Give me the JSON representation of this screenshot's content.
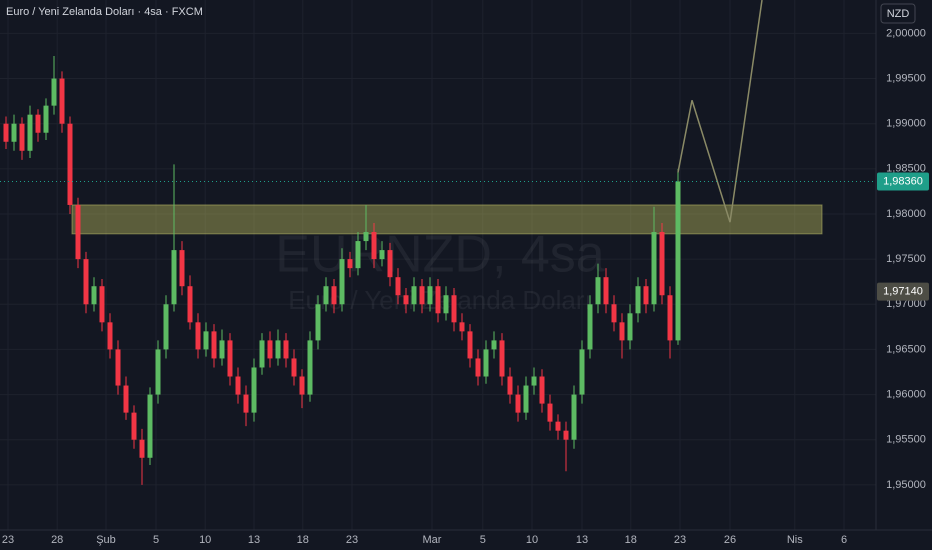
{
  "header": {
    "title": "Euro / Yeni Zelanda Doları · 4sa · FXCM",
    "currency": "NZD"
  },
  "watermark": {
    "symbol": "EURNZD, 4sa",
    "name": "Euro / Yeni Zelanda Doları"
  },
  "chart_data": {
    "type": "candlestick",
    "up_color": "#5dbb63",
    "down_color": "#f23645",
    "xlim": [
      -0.75,
      108.75
    ],
    "ylim": [
      1.945,
      2.0037
    ],
    "grid": true,
    "xticks": [
      {
        "value": 0.25,
        "label": "23"
      },
      {
        "value": 6.4,
        "label": "28"
      },
      {
        "value": 12.5,
        "label": "Şub"
      },
      {
        "value": 18.75,
        "label": "5"
      },
      {
        "value": 24.9,
        "label": "10"
      },
      {
        "value": 31,
        "label": "13"
      },
      {
        "value": 37.1,
        "label": "18"
      },
      {
        "value": 43.25,
        "label": "23"
      },
      {
        "value": 53.25,
        "label": "Mar"
      },
      {
        "value": 59.6,
        "label": "5"
      },
      {
        "value": 65.75,
        "label": "10"
      },
      {
        "value": 72,
        "label": "13"
      },
      {
        "value": 78.1,
        "label": "18"
      },
      {
        "value": 84.25,
        "label": "23"
      },
      {
        "value": 90.5,
        "label": "26"
      },
      {
        "value": 98.6,
        "label": "Nis"
      },
      {
        "value": 104.75,
        "label": "6"
      }
    ],
    "yticks": [
      {
        "value": 2.0,
        "label": "2,00000"
      },
      {
        "value": 1.995,
        "label": "1,99500"
      },
      {
        "value": 1.99,
        "label": "1,99000"
      },
      {
        "value": 1.985,
        "label": "1,98500"
      },
      {
        "value": 1.98,
        "label": "1,98000"
      },
      {
        "value": 1.975,
        "label": "1,97500"
      },
      {
        "value": 1.97,
        "label": "1,97000"
      },
      {
        "value": 1.965,
        "label": "1,96500"
      },
      {
        "value": 1.96,
        "label": "1,96000"
      },
      {
        "value": 1.955,
        "label": "1,95500"
      },
      {
        "value": 1.95,
        "label": "1,95000"
      }
    ],
    "open": [
      1.99,
      1.988,
      1.99,
      1.987,
      1.991,
      1.989,
      1.992,
      1.995,
      1.99,
      1.981,
      1.975,
      1.97,
      1.972,
      1.968,
      1.965,
      1.961,
      1.958,
      1.955,
      1.953,
      1.96,
      1.965,
      1.97,
      1.976,
      1.972,
      1.968,
      1.965,
      1.967,
      1.964,
      1.966,
      1.962,
      1.96,
      1.958,
      1.963,
      1.966,
      1.964,
      1.966,
      1.964,
      1.962,
      1.96,
      1.966,
      1.97,
      1.972,
      1.97,
      1.975,
      1.974,
      1.977,
      1.978,
      1.975,
      1.976,
      1.973,
      1.971,
      1.97,
      1.972,
      1.97,
      1.972,
      1.969,
      1.971,
      1.968,
      1.967,
      1.964,
      1.962,
      1.965,
      1.966,
      1.962,
      1.96,
      1.958,
      1.961,
      1.962,
      1.959,
      1.957,
      1.956,
      1.955,
      1.96,
      1.965,
      1.97,
      1.973,
      1.97,
      1.968,
      1.966,
      1.969,
      1.972,
      1.97,
      1.978,
      1.971,
      1.966
    ],
    "high": [
      1.9908,
      1.991,
      1.9907,
      1.992,
      1.9916,
      1.9928,
      1.9975,
      1.9958,
      1.9908,
      1.9818,
      1.9758,
      1.973,
      1.9728,
      1.969,
      1.966,
      1.962,
      1.9588,
      1.9562,
      1.9608,
      1.966,
      1.971,
      1.9855,
      1.977,
      1.9732,
      1.969,
      1.968,
      1.9678,
      1.9672,
      1.9668,
      1.963,
      1.961,
      1.964,
      1.9668,
      1.967,
      1.9672,
      1.9668,
      1.965,
      1.9628,
      1.967,
      1.971,
      1.973,
      1.9728,
      1.9762,
      1.9758,
      1.978,
      1.981,
      1.979,
      1.977,
      1.9768,
      1.974,
      1.9718,
      1.973,
      1.9728,
      1.973,
      1.9728,
      1.972,
      1.9718,
      1.969,
      1.9678,
      1.965,
      1.966,
      1.967,
      1.9668,
      1.963,
      1.961,
      1.962,
      1.963,
      1.9628,
      1.96,
      1.9578,
      1.957,
      1.961,
      1.966,
      1.971,
      1.9745,
      1.974,
      1.971,
      1.969,
      1.97,
      1.973,
      1.9728,
      1.9808,
      1.979,
      1.972,
      1.985
    ],
    "low": [
      1.9872,
      1.987,
      1.986,
      1.9862,
      1.988,
      1.9882,
      1.991,
      1.989,
      1.98,
      1.974,
      1.969,
      1.9692,
      1.967,
      1.964,
      1.96,
      1.9572,
      1.954,
      1.95,
      1.9522,
      1.959,
      1.964,
      1.9692,
      1.971,
      1.9672,
      1.964,
      1.9642,
      1.963,
      1.9632,
      1.961,
      1.959,
      1.9565,
      1.957,
      1.9622,
      1.963,
      1.9632,
      1.963,
      1.961,
      1.9585,
      1.9592,
      1.965,
      1.9692,
      1.969,
      1.9692,
      1.973,
      1.9732,
      1.976,
      1.974,
      1.9742,
      1.972,
      1.97,
      1.969,
      1.9692,
      1.969,
      1.9692,
      1.968,
      1.9682,
      1.967,
      1.966,
      1.963,
      1.961,
      1.9612,
      1.964,
      1.961,
      1.959,
      1.957,
      1.9572,
      1.96,
      1.958,
      1.956,
      1.955,
      1.9515,
      1.954,
      1.959,
      1.964,
      1.969,
      1.969,
      1.967,
      1.964,
      1.965,
      1.968,
      1.969,
      1.9692,
      1.97,
      1.964,
      1.9655
    ],
    "close": [
      1.988,
      1.99,
      1.987,
      1.991,
      1.989,
      1.992,
      1.995,
      1.99,
      1.981,
      1.975,
      1.97,
      1.972,
      1.968,
      1.965,
      1.961,
      1.958,
      1.955,
      1.953,
      1.96,
      1.965,
      1.97,
      1.976,
      1.972,
      1.968,
      1.965,
      1.967,
      1.964,
      1.966,
      1.962,
      1.96,
      1.958,
      1.963,
      1.966,
      1.964,
      1.966,
      1.964,
      1.962,
      1.96,
      1.966,
      1.97,
      1.972,
      1.97,
      1.975,
      1.974,
      1.977,
      1.978,
      1.975,
      1.976,
      1.973,
      1.971,
      1.97,
      1.972,
      1.97,
      1.972,
      1.969,
      1.971,
      1.968,
      1.967,
      1.964,
      1.962,
      1.965,
      1.966,
      1.962,
      1.96,
      1.958,
      1.961,
      1.962,
      1.959,
      1.957,
      1.956,
      1.955,
      1.96,
      1.965,
      1.97,
      1.973,
      1.97,
      1.968,
      1.966,
      1.969,
      1.972,
      1.97,
      1.978,
      1.971,
      1.966,
      1.9836
    ],
    "zone": {
      "x": [
        8.25,
        102
      ],
      "values": [
        1.981,
        1.9778
      ],
      "color": "rgba(190,190,95,0.42)"
    },
    "projection": {
      "x": [
        84,
        85.75,
        90.5,
        94.5
      ],
      "values": [
        1.9846,
        1.9926,
        1.9791,
        2.0037
      ],
      "color": "#8a8a66"
    },
    "last_price": {
      "value": 1.9836,
      "label": "1,98360",
      "color": "#1f9e89"
    },
    "marker_price": {
      "value": 1.9714,
      "label": "1,97140",
      "color": "#4d4d45"
    }
  }
}
